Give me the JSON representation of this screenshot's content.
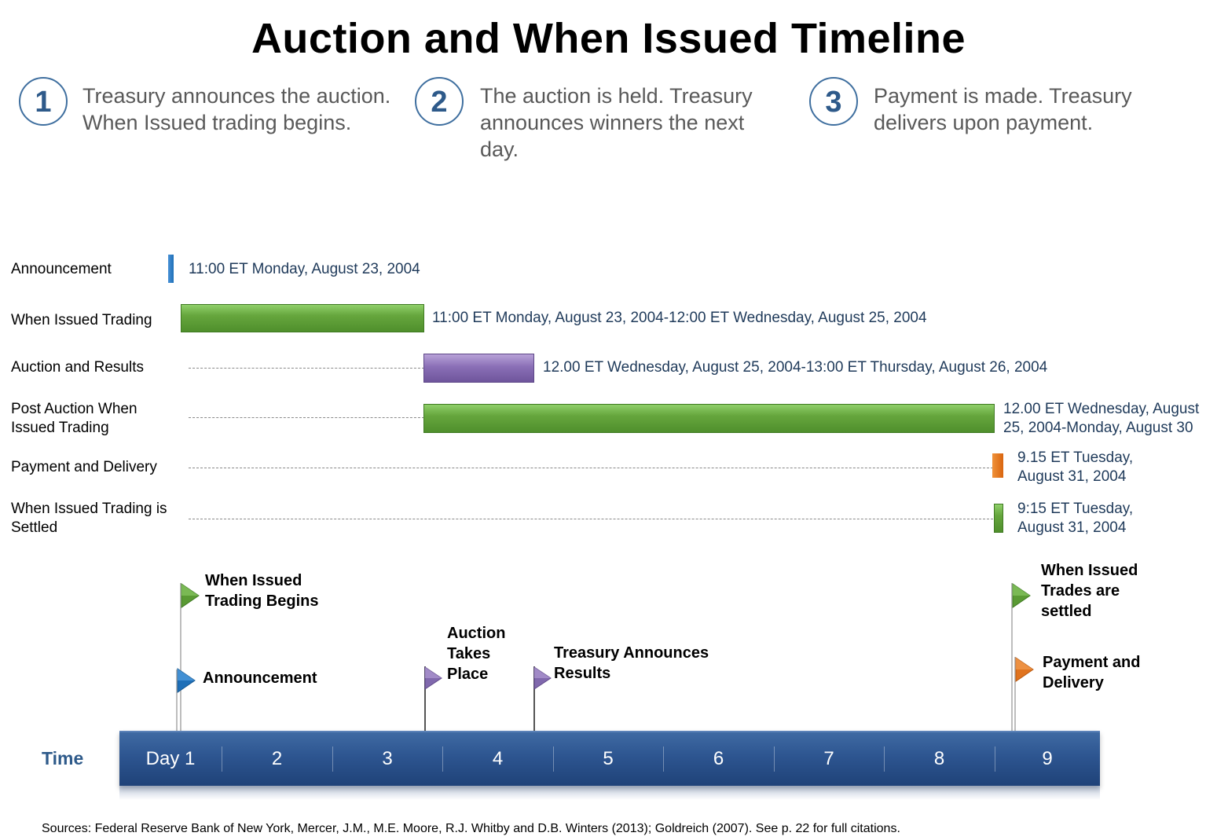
{
  "title": "Auction and When Issued Timeline",
  "steps": [
    {
      "number": "1",
      "text": "Treasury announces the auction. When Issued trading begins."
    },
    {
      "number": "2",
      "text": "The auction is held. Treasury announces winners the next day."
    },
    {
      "number": "3",
      "text": "Payment is made. Treasury delivers  upon payment."
    }
  ],
  "rows": [
    {
      "label": "Announcement",
      "text": "11:00 ET Monday, August 23, 2004"
    },
    {
      "label": "When Issued Trading",
      "text": "11:00 ET Monday, August 23, 2004-12:00 ET Wednesday, August 25, 2004"
    },
    {
      "label": "Auction and Results",
      "text": "12.00 ET Wednesday, August 25, 2004-13:00 ET Thursday, August 26, 2004"
    },
    {
      "label": "Post Auction When Issued Trading",
      "text": "12.00 ET Wednesday, August 25, 2004-Monday, August 30"
    },
    {
      "label": "Payment and Delivery",
      "text": "9.15 ET Tuesday, August 31, 2004"
    },
    {
      "label": "When Issued Trading is Settled",
      "text": "9:15 ET Tuesday, August 31, 2004"
    }
  ],
  "milestones": {
    "wi_begins": "When Issued Trading Begins",
    "announcement": "Announcement",
    "auction": "Auction Takes Place",
    "results": "Treasury Announces Results",
    "settled": "When Issued Trades are settled",
    "payment": "Payment and Delivery"
  },
  "time_axis": {
    "label": "Time",
    "days": [
      "Day 1",
      "2",
      "3",
      "4",
      "5",
      "6",
      "7",
      "8",
      "9"
    ]
  },
  "sources": "Sources:  Federal Reserve Bank of New York, Mercer, J.M., M.E. Moore, R.J. Whitby and D.B. Winters (2013); Goldreich (2007).  See p. 22 for full citations.",
  "colors": {
    "green": "#5a9a34",
    "purple": "#8068ad",
    "blue": "#1e6fb8",
    "orange": "#e0731e",
    "timebar": "#2d5590"
  }
}
